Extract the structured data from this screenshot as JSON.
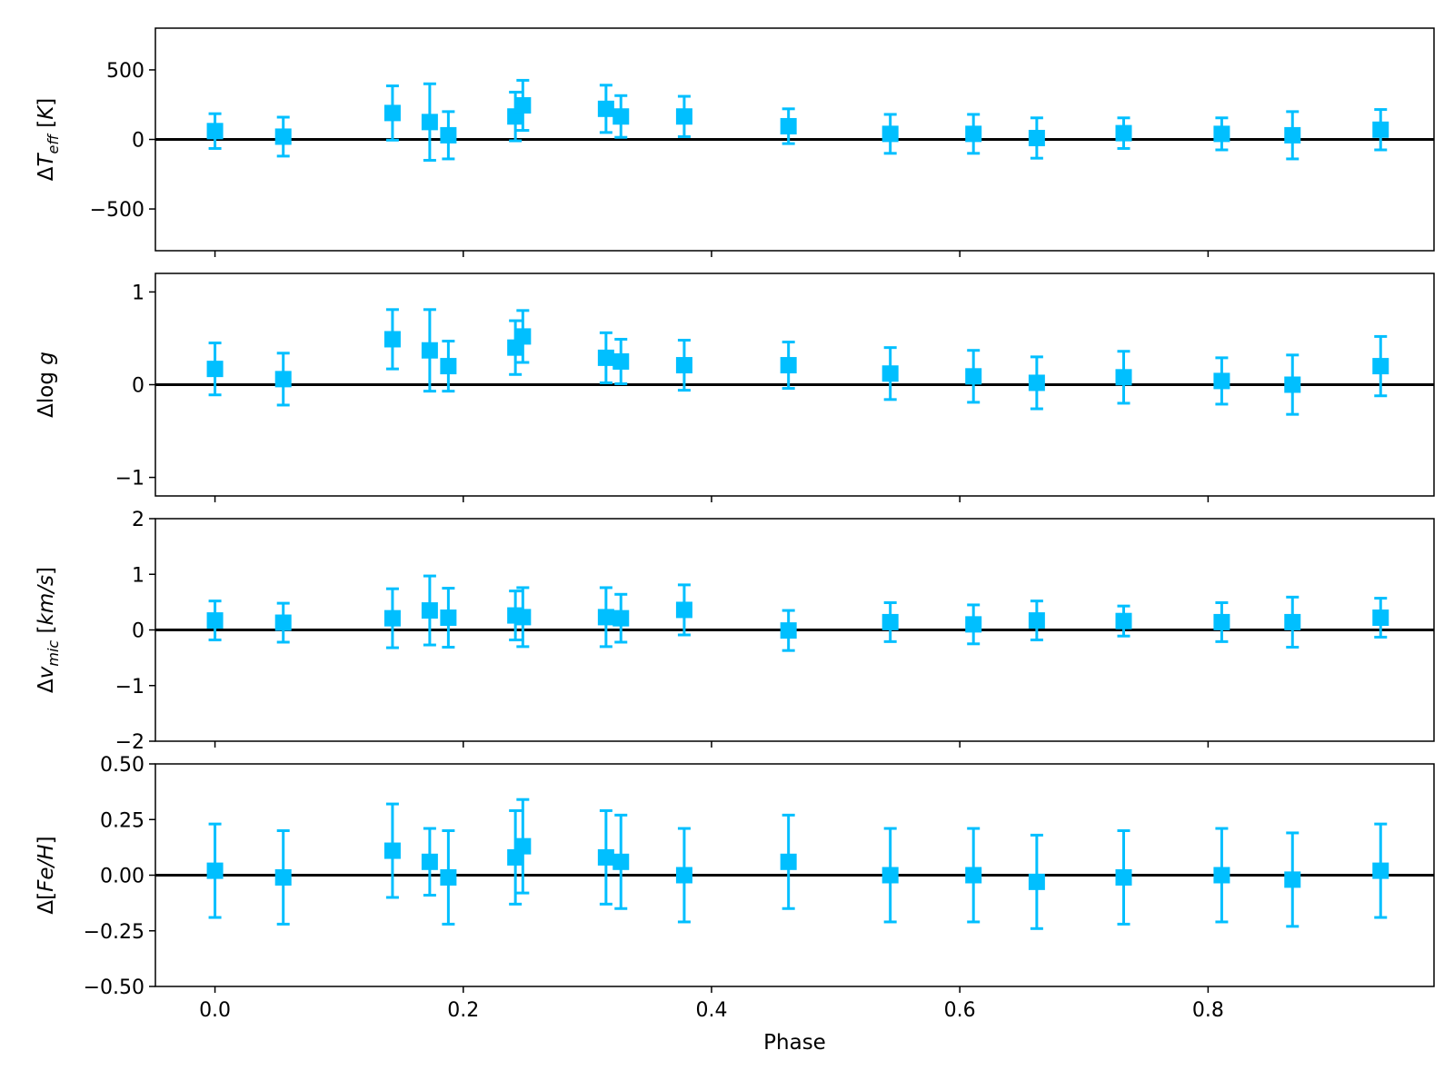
{
  "chart_data": [
    {
      "type": "scatter",
      "name": "delta-teff",
      "ylabel": "ΔT_eff [K]",
      "ylim": [
        -800,
        800
      ],
      "yticks": [
        500,
        0,
        -500
      ],
      "ytick_labels": [
        "500",
        "0",
        "−500"
      ],
      "xlim": [
        -0.048,
        0.982
      ],
      "reference_line": 0,
      "marker": "square",
      "color": "#00bfff",
      "x": [
        0.0,
        0.055,
        0.143,
        0.173,
        0.188,
        0.242,
        0.248,
        0.315,
        0.327,
        0.378,
        0.462,
        0.544,
        0.611,
        0.662,
        0.732,
        0.811,
        0.868,
        0.939
      ],
      "y": [
        60,
        20,
        190,
        125,
        30,
        165,
        245,
        220,
        165,
        165,
        95,
        40,
        40,
        10,
        45,
        40,
        30,
        70
      ],
      "yerr": [
        125,
        140,
        195,
        275,
        170,
        175,
        180,
        170,
        150,
        145,
        125,
        140,
        140,
        145,
        110,
        115,
        170,
        145
      ]
    },
    {
      "type": "scatter",
      "name": "delta-logg",
      "ylabel": "Δlog g",
      "ylim": [
        -1.2,
        1.2
      ],
      "yticks": [
        1,
        0,
        -1
      ],
      "ytick_labels": [
        "1",
        "0",
        "−1"
      ],
      "xlim": [
        -0.048,
        0.982
      ],
      "reference_line": 0,
      "marker": "square",
      "color": "#00bfff",
      "x": [
        0.0,
        0.055,
        0.143,
        0.173,
        0.188,
        0.242,
        0.248,
        0.315,
        0.327,
        0.378,
        0.462,
        0.544,
        0.611,
        0.662,
        0.732,
        0.811,
        0.868,
        0.939
      ],
      "y": [
        0.17,
        0.06,
        0.49,
        0.37,
        0.2,
        0.4,
        0.52,
        0.29,
        0.25,
        0.21,
        0.21,
        0.12,
        0.09,
        0.02,
        0.08,
        0.04,
        0.0,
        0.2
      ],
      "yerr": [
        0.28,
        0.28,
        0.32,
        0.44,
        0.27,
        0.29,
        0.28,
        0.27,
        0.24,
        0.27,
        0.25,
        0.28,
        0.28,
        0.28,
        0.28,
        0.25,
        0.32,
        0.32
      ]
    },
    {
      "type": "scatter",
      "name": "delta-vmic",
      "ylabel": "Δv_mic [km/s]",
      "ylim": [
        -2,
        2
      ],
      "yticks": [
        2,
        1,
        0,
        -1,
        -2
      ],
      "ytick_labels": [
        "2",
        "1",
        "0",
        "−1",
        "−2"
      ],
      "xlim": [
        -0.048,
        0.982
      ],
      "reference_line": 0,
      "marker": "square",
      "color": "#00bfff",
      "x": [
        0.0,
        0.055,
        0.143,
        0.173,
        0.188,
        0.242,
        0.248,
        0.315,
        0.327,
        0.378,
        0.462,
        0.544,
        0.611,
        0.662,
        0.732,
        0.811,
        0.868,
        0.939
      ],
      "y": [
        0.17,
        0.13,
        0.21,
        0.35,
        0.22,
        0.26,
        0.23,
        0.23,
        0.21,
        0.36,
        -0.01,
        0.14,
        0.1,
        0.17,
        0.16,
        0.14,
        0.14,
        0.22
      ],
      "yerr": [
        0.35,
        0.35,
        0.53,
        0.62,
        0.53,
        0.44,
        0.53,
        0.53,
        0.43,
        0.45,
        0.36,
        0.35,
        0.35,
        0.35,
        0.27,
        0.35,
        0.45,
        0.35
      ]
    },
    {
      "type": "scatter",
      "name": "delta-feh",
      "ylabel": "Δ[Fe/H]",
      "xlabel": "Phase",
      "ylim": [
        -0.5,
        0.5
      ],
      "yticks": [
        0.5,
        0.25,
        0.0,
        -0.25,
        -0.5
      ],
      "ytick_labels": [
        "0.50",
        "0.25",
        "0.00",
        "−0.25",
        "−0.50"
      ],
      "xlim": [
        -0.048,
        0.982
      ],
      "xticks": [
        0.0,
        0.2,
        0.4,
        0.6,
        0.8
      ],
      "xtick_labels": [
        "0.0",
        "0.2",
        "0.4",
        "0.6",
        "0.8"
      ],
      "reference_line": 0,
      "marker": "square",
      "color": "#00bfff",
      "x": [
        0.0,
        0.055,
        0.143,
        0.173,
        0.188,
        0.242,
        0.248,
        0.315,
        0.327,
        0.378,
        0.462,
        0.544,
        0.611,
        0.662,
        0.732,
        0.811,
        0.868,
        0.939
      ],
      "y": [
        0.02,
        -0.01,
        0.11,
        0.06,
        -0.01,
        0.08,
        0.13,
        0.08,
        0.06,
        0.0,
        0.06,
        0.0,
        0.0,
        -0.03,
        -0.01,
        0.0,
        -0.02,
        0.02
      ],
      "yerr": [
        0.21,
        0.21,
        0.21,
        0.15,
        0.21,
        0.21,
        0.21,
        0.21,
        0.21,
        0.21,
        0.21,
        0.21,
        0.21,
        0.21,
        0.21,
        0.21,
        0.21,
        0.21
      ]
    }
  ]
}
